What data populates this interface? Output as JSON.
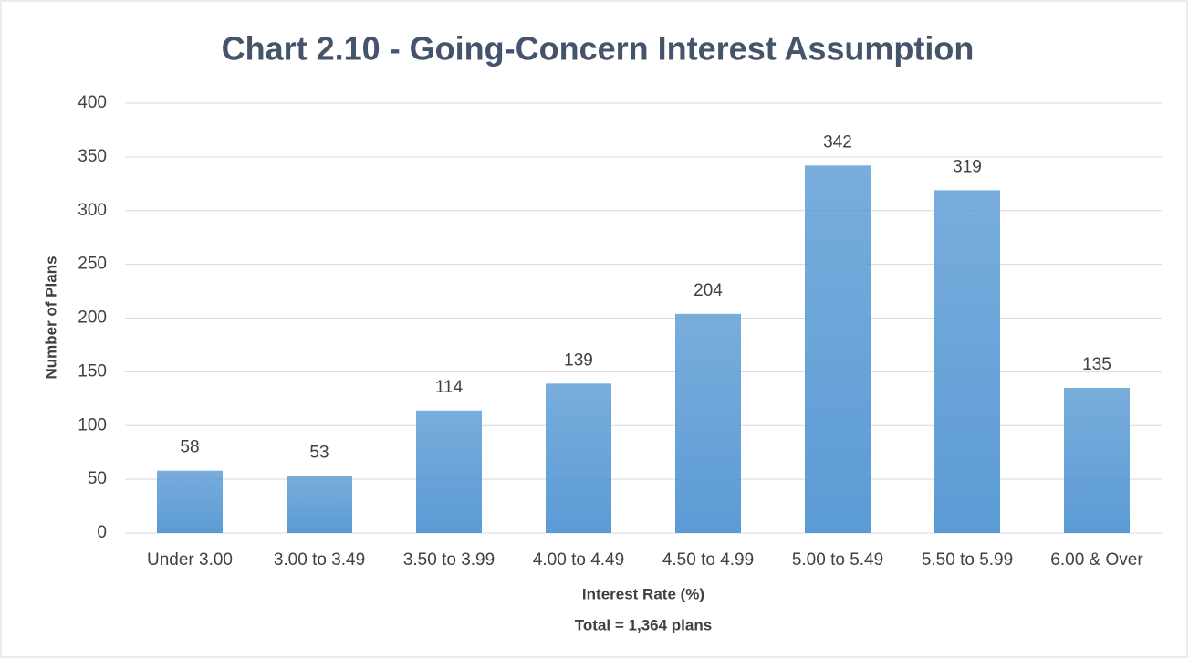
{
  "chart_data": {
    "type": "bar",
    "title": "Chart 2.10 - Going-Concern Interest Assumption",
    "x_label": "Interest Rate (%)",
    "note": "Total = 1,364 plans",
    "y_label": "Number of Plans",
    "categories": [
      "Under 3.00",
      "3.00 to 3.49",
      "3.50 to 3.99",
      "4.00 to 4.49",
      "4.50 to 4.99",
      "5.00 to 5.49",
      "5.50 to 5.99",
      "6.00 & Over"
    ],
    "values": [
      58,
      53,
      114,
      139,
      204,
      342,
      319,
      135
    ],
    "color": "#5b9bd5",
    "ylim": [
      0,
      400
    ],
    "yticks": [
      0,
      50,
      100,
      150,
      200,
      250,
      300,
      350,
      400
    ],
    "grid": true,
    "data_labels": true
  }
}
